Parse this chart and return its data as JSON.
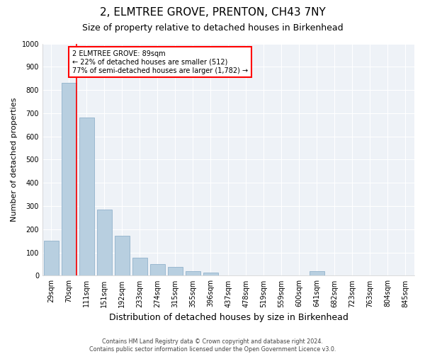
{
  "title": "2, ELMTREE GROVE, PRENTON, CH43 7NY",
  "subtitle": "Size of property relative to detached houses in Birkenhead",
  "xlabel": "Distribution of detached houses by size in Birkenhead",
  "ylabel": "Number of detached properties",
  "categories": [
    "29sqm",
    "70sqm",
    "111sqm",
    "151sqm",
    "192sqm",
    "233sqm",
    "274sqm",
    "315sqm",
    "355sqm",
    "396sqm",
    "437sqm",
    "478sqm",
    "519sqm",
    "559sqm",
    "600sqm",
    "641sqm",
    "682sqm",
    "723sqm",
    "763sqm",
    "804sqm",
    "845sqm"
  ],
  "values": [
    150,
    830,
    680,
    285,
    172,
    78,
    50,
    38,
    20,
    12,
    0,
    0,
    0,
    0,
    0,
    20,
    0,
    0,
    0,
    0,
    0
  ],
  "bar_color": "#b8cfe0",
  "bar_edgecolor": "#9ab8d0",
  "redline_x": 1.42,
  "annotation_text": "2 ELMTREE GROVE: 89sqm\n← 22% of detached houses are smaller (512)\n77% of semi-detached houses are larger (1,782) →",
  "annotation_box_color": "white",
  "annotation_box_edgecolor": "red",
  "redline_color": "red",
  "ylim": [
    0,
    1000
  ],
  "yticks": [
    0,
    100,
    200,
    300,
    400,
    500,
    600,
    700,
    800,
    900,
    1000
  ],
  "footer": "Contains HM Land Registry data © Crown copyright and database right 2024.\nContains public sector information licensed under the Open Government Licence v3.0.",
  "bg_color": "#eef2f7",
  "title_fontsize": 11,
  "subtitle_fontsize": 9,
  "xlabel_fontsize": 9,
  "ylabel_fontsize": 8,
  "annotation_fontsize": 7,
  "tick_fontsize": 7
}
